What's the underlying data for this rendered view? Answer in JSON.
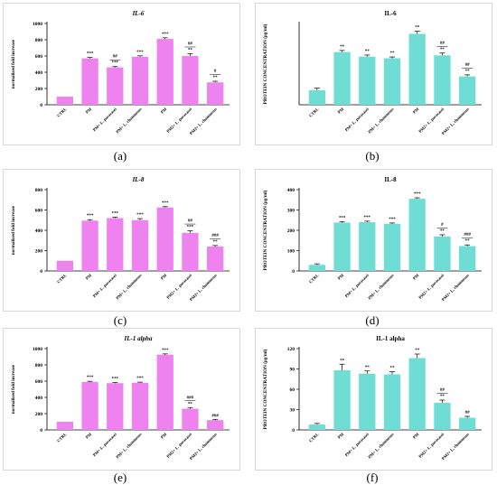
{
  "colors": {
    "pink": "#EE82EE",
    "teal": "#6FDDD3",
    "axis": "#000000"
  },
  "captions": [
    "(a)",
    "(b)",
    "(c)",
    "(d)",
    "(e)",
    "(f)"
  ],
  "chart_data": [
    {
      "type": "bar",
      "title": "IL-6",
      "title_italic": true,
      "ylabel": "normalized fold increase",
      "ylim": [
        0,
        1000
      ],
      "yticks": [
        0,
        200,
        400,
        600,
        800,
        1000
      ],
      "categories": [
        "CTRL",
        "PM",
        "PM+ L. paracasei",
        "PM+ L. rhamnosus",
        "PM",
        "PM2+ L. paracasei",
        "PM2+ L. rhamnosus"
      ],
      "values": [
        100,
        570,
        460,
        590,
        810,
        600,
        275
      ],
      "errors": [
        0,
        12,
        10,
        12,
        14,
        28,
        14
      ],
      "annotations": [
        [],
        [
          "***"
        ],
        [
          "##",
          "***"
        ],
        [
          "***"
        ],
        [
          "***"
        ],
        [
          "##",
          "**"
        ],
        [
          "#",
          "**"
        ]
      ],
      "color": "pink"
    },
    {
      "type": "bar",
      "title": "IL-6",
      "title_italic": false,
      "ylabel": "PROTEIN CONCENTRATION (pg/ml)",
      "ylim": [
        0,
        250
      ],
      "yticks": [],
      "categories": [
        "CTRL",
        "PM",
        "PM+ L. paracasei",
        "PM+ L. rhamnosus",
        "PM",
        "PM2+ L. paracasei",
        "PM2+ L. rhamnosus"
      ],
      "values": [
        45,
        162,
        148,
        143,
        218,
        152,
        87
      ],
      "errors": [
        6,
        5,
        5,
        4,
        8,
        7,
        5
      ],
      "annotations": [
        [],
        [
          "**"
        ],
        [
          "**"
        ],
        [
          "**"
        ],
        [
          "**"
        ],
        [
          "##",
          "**"
        ],
        [
          "##",
          "**"
        ]
      ],
      "color": "teal"
    },
    {
      "type": "bar",
      "title": "IL-8",
      "title_italic": true,
      "ylabel": "normalized fold increase",
      "ylim": [
        0,
        800
      ],
      "yticks": [
        0,
        200,
        400,
        600,
        800
      ],
      "categories": [
        "CTRL",
        "PM",
        "PM+ L. paracasei",
        "PM+ L. rhamnosus",
        "PM",
        "PM2+ L. paracasei",
        "PM2+ L. rhamnosus"
      ],
      "values": [
        100,
        495,
        520,
        500,
        625,
        375,
        240
      ],
      "errors": [
        0,
        10,
        10,
        15,
        8,
        20,
        10
      ],
      "annotations": [
        [],
        [
          "***"
        ],
        [
          "***"
        ],
        [
          "***"
        ],
        [
          "***"
        ],
        [
          "##",
          "***"
        ],
        [
          "###",
          "**"
        ]
      ],
      "color": "pink"
    },
    {
      "type": "bar",
      "title": "IL-8",
      "title_italic": false,
      "ylabel": "PROTEIN CONCENTRATION (pg/ml)",
      "ylim": [
        0,
        400
      ],
      "yticks": [
        0,
        100,
        200,
        300,
        400
      ],
      "categories": [
        "CTRL",
        "PM",
        "PM+ L. paracasei",
        "PM+ L. rhamnosus",
        "PM",
        "PM2+ L. paracasei",
        "PM2+ L. rhamnosus"
      ],
      "values": [
        30,
        238,
        240,
        232,
        355,
        170,
        122
      ],
      "errors": [
        5,
        5,
        5,
        4,
        5,
        8,
        6
      ],
      "annotations": [
        [],
        [
          "***"
        ],
        [
          "***"
        ],
        [
          "***"
        ],
        [
          "***"
        ],
        [
          "#",
          "**"
        ],
        [
          "###",
          "**"
        ]
      ],
      "color": "teal"
    },
    {
      "type": "bar",
      "title": "IL-1 alpha",
      "title_italic": true,
      "ylabel": "normalized fold increase",
      "ylim": [
        0,
        1000
      ],
      "yticks": [
        0,
        200,
        400,
        600,
        800,
        1000
      ],
      "categories": [
        "CTRL",
        "PM",
        "PM+ L. paracasei",
        "PM+ L. rhamnosus",
        "PM",
        "PM2+ L. paracasei",
        "PM2+ L. rhamnosus"
      ],
      "values": [
        100,
        590,
        575,
        580,
        925,
        260,
        120
      ],
      "errors": [
        0,
        8,
        8,
        8,
        10,
        15,
        10
      ],
      "annotations": [
        [],
        [
          "***"
        ],
        [
          "***"
        ],
        [
          "***"
        ],
        [
          "***"
        ],
        [
          "###",
          "**"
        ],
        [
          "###"
        ]
      ],
      "color": "pink"
    },
    {
      "type": "bar",
      "title": "IL-1 alpha",
      "title_italic": false,
      "ylabel": "PROTEIN CONCENTRATION (pg/ml)",
      "ylim": [
        0,
        120
      ],
      "yticks": [
        0,
        30,
        60,
        90,
        120
      ],
      "categories": [
        "CTRL",
        "PM",
        "PM+ L. paracasei",
        "PM+ L. rhamnosus",
        "PM",
        "PM2+ L. paracasei",
        "PM2+ L. rhamnosus"
      ],
      "values": [
        8,
        88,
        83,
        82,
        106,
        40,
        18
      ],
      "errors": [
        1.5,
        9,
        4,
        4,
        6,
        4,
        2
      ],
      "annotations": [
        [],
        [
          "**"
        ],
        [
          "**"
        ],
        [
          "**"
        ],
        [
          "**"
        ],
        [
          "##",
          "**"
        ],
        [
          "##"
        ]
      ],
      "color": "teal"
    }
  ]
}
